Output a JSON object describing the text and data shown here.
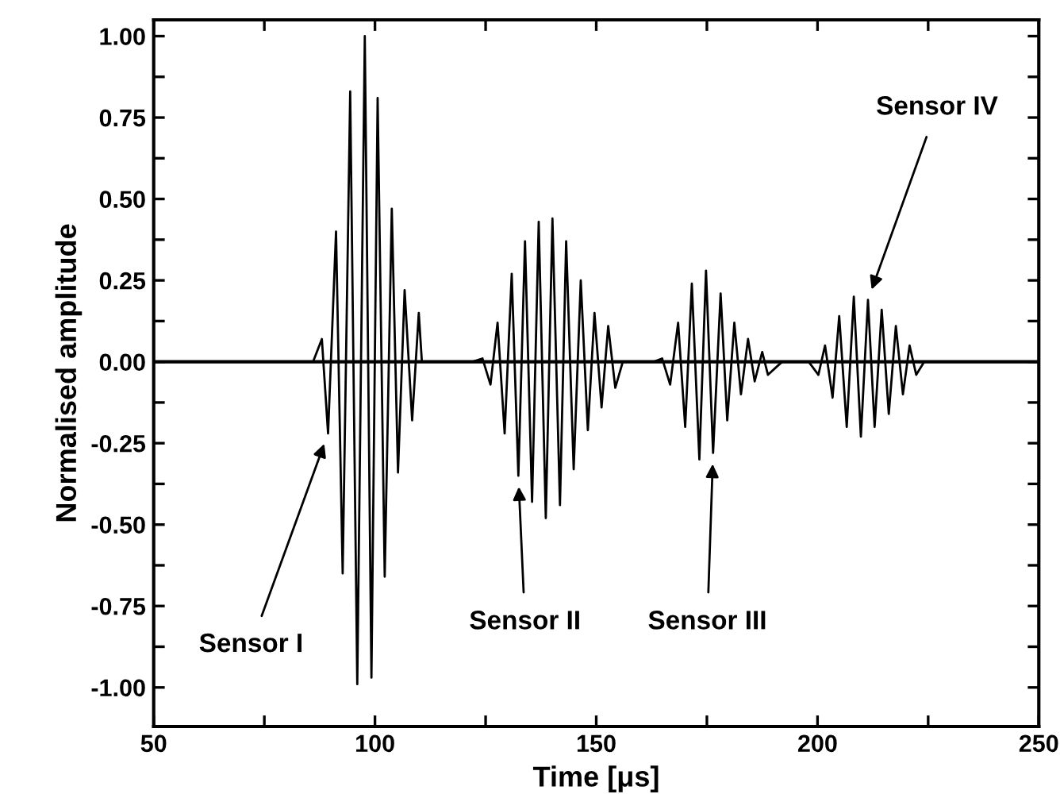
{
  "chart_data": {
    "type": "line",
    "xlabel": "Time [μs]",
    "ylabel": "Normalised amplitude",
    "series": [
      {
        "color": "#000000",
        "x": [
          50,
          86,
          88.0,
          89.4,
          91.2,
          92.7,
          94.4,
          96.0,
          97.7,
          99.2,
          100.6,
          102.2,
          103.8,
          105.2,
          106.7,
          108.4,
          109.9,
          110.6,
          122,
          124.3,
          126.1,
          127.7,
          129.3,
          130.9,
          132.4,
          133.9,
          135.5,
          137.0,
          138.6,
          140.1,
          141.8,
          143.2,
          144.9,
          146.5,
          148.1,
          149.6,
          151.2,
          152.7,
          154.3,
          156,
          163,
          164.9,
          166.7,
          168.5,
          170.1,
          171.6,
          173.3,
          174.8,
          176.4,
          178.1,
          179.6,
          181.2,
          182.7,
          184.3,
          185.8,
          187.5,
          188.8,
          192,
          198,
          200.2,
          201.7,
          203.4,
          204.9,
          206.6,
          208.2,
          209.8,
          211.4,
          212.9,
          214.5,
          216.1,
          217.7,
          219.3,
          220.8,
          222.3,
          224.1
        ],
        "values": [
          0,
          0,
          0.07,
          -0.22,
          0.4,
          -0.65,
          0.83,
          -0.99,
          1.0,
          -0.97,
          0.81,
          -0.66,
          0.47,
          -0.34,
          0.22,
          -0.18,
          0.15,
          0,
          0,
          0.01,
          -0.07,
          0.12,
          -0.22,
          0.27,
          -0.35,
          0.37,
          -0.43,
          0.43,
          -0.48,
          0.44,
          -0.44,
          0.37,
          -0.33,
          0.25,
          -0.21,
          0.15,
          -0.14,
          0.11,
          -0.08,
          0,
          0,
          0.01,
          -0.07,
          0.12,
          -0.2,
          0.24,
          -0.3,
          0.28,
          -0.28,
          0.21,
          -0.18,
          0.12,
          -0.1,
          0.07,
          -0.06,
          0.03,
          -0.04,
          0,
          0,
          -0.04,
          0.05,
          -0.11,
          0.14,
          -0.2,
          0.2,
          -0.23,
          0.19,
          -0.2,
          0.16,
          -0.16,
          0.11,
          -0.1,
          0.05,
          -0.04,
          0.0
        ]
      }
    ],
    "ref_lines": [
      {
        "axis": "y",
        "value": 0,
        "color": "#000000"
      }
    ],
    "annotations": [
      {
        "text": "Sensor I",
        "x": 89.4,
        "y": -0.22
      },
      {
        "text": "Sensor II",
        "x": 132.4,
        "y": -0.35
      },
      {
        "text": "Sensor III",
        "x": 176.4,
        "y": -0.28
      },
      {
        "text": "Sensor IV",
        "x": 211.4,
        "y": 0.19
      }
    ],
    "xlim": [
      50,
      250
    ],
    "xticks": [
      50,
      {
        "value": 75,
        "label": null
      },
      100,
      {
        "value": 125,
        "label": null
      },
      150,
      {
        "value": 175,
        "label": null
      },
      200,
      {
        "value": 225,
        "label": null
      },
      250
    ],
    "ylim": [
      -1.12,
      1.05
    ],
    "yticks": [
      {
        "value": -1,
        "label": "-1.00"
      },
      {
        "value": -0.875,
        "label": null
      },
      {
        "value": -0.75,
        "label": "-0.75"
      },
      {
        "value": -0.625,
        "label": null
      },
      {
        "value": -0.5,
        "label": "-0.50"
      },
      {
        "value": -0.375,
        "label": null
      },
      {
        "value": -0.25,
        "label": "-0.25"
      },
      {
        "value": -0.125,
        "label": null
      },
      {
        "value": 0,
        "label": "0.00"
      },
      {
        "value": 0.125,
        "label": null
      },
      {
        "value": 0.25,
        "label": "0.25"
      },
      {
        "value": 0.375,
        "label": null
      },
      {
        "value": 0.5,
        "label": "0.50"
      },
      {
        "value": 0.625,
        "label": null
      },
      {
        "value": 0.75,
        "label": "0.75"
      },
      {
        "value": 0.875,
        "label": null
      },
      {
        "value": 1,
        "label": "1.00"
      }
    ],
    "grid": false,
    "legend": false,
    "marker": "none",
    "line_style": "solid"
  }
}
